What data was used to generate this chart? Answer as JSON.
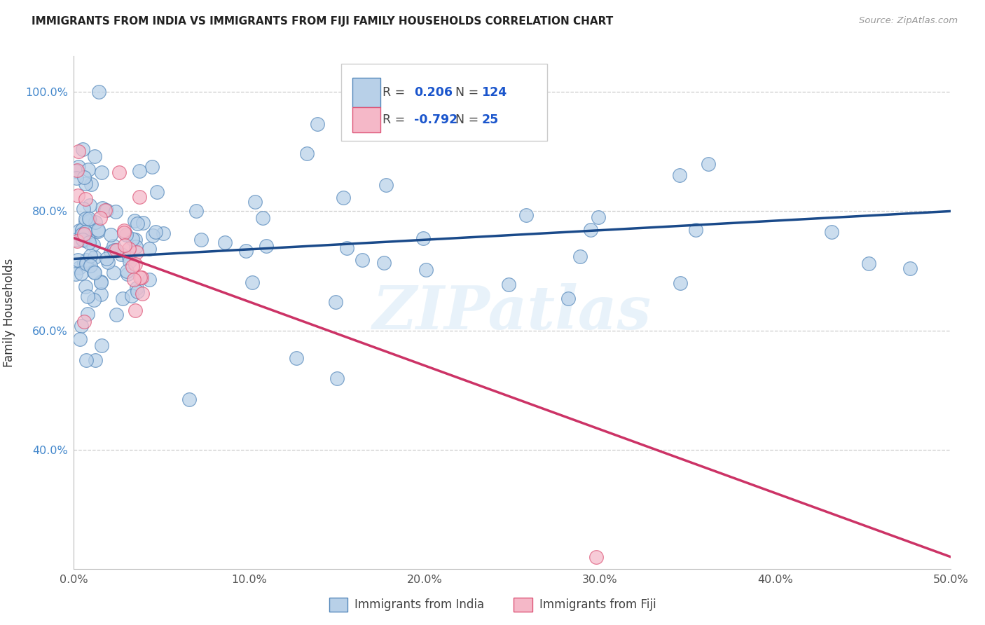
{
  "title": "IMMIGRANTS FROM INDIA VS IMMIGRANTS FROM FIJI FAMILY HOUSEHOLDS CORRELATION CHART",
  "source": "Source: ZipAtlas.com",
  "ylabel": "Family Households",
  "legend_india": "Immigrants from India",
  "legend_fiji": "Immigrants from Fiji",
  "R_india": "0.206",
  "N_india": "124",
  "R_fiji": "-0.792",
  "N_fiji": "25",
  "xlim": [
    0.0,
    0.5
  ],
  "ylim": [
    0.2,
    1.06
  ],
  "yticks": [
    0.4,
    0.6,
    0.8,
    1.0
  ],
  "ytick_labels": [
    "40.0%",
    "60.0%",
    "80.0%",
    "100.0%"
  ],
  "xticks": [
    0.0,
    0.1,
    0.2,
    0.3,
    0.4,
    0.5
  ],
  "xtick_labels": [
    "0.0%",
    "10.0%",
    "20.0%",
    "30.0%",
    "40.0%",
    "50.0%"
  ],
  "color_india_fill": "#b8d0e8",
  "color_india_edge": "#5588bb",
  "color_india_line": "#1a4a8a",
  "color_fiji_fill": "#f5b8c8",
  "color_fiji_edge": "#dd5577",
  "color_fiji_line": "#cc3366",
  "grid_color": "#cccccc",
  "background": "#ffffff",
  "india_trend": [
    0.0,
    0.72,
    0.5,
    0.8
  ],
  "fiji_trend": [
    0.0,
    0.755,
    0.5,
    0.22
  ],
  "watermark": "ZIPatlas",
  "title_color": "#222222",
  "source_color": "#999999",
  "ylabel_color": "#333333",
  "ytick_color": "#4488cc",
  "xtick_color": "#555555"
}
